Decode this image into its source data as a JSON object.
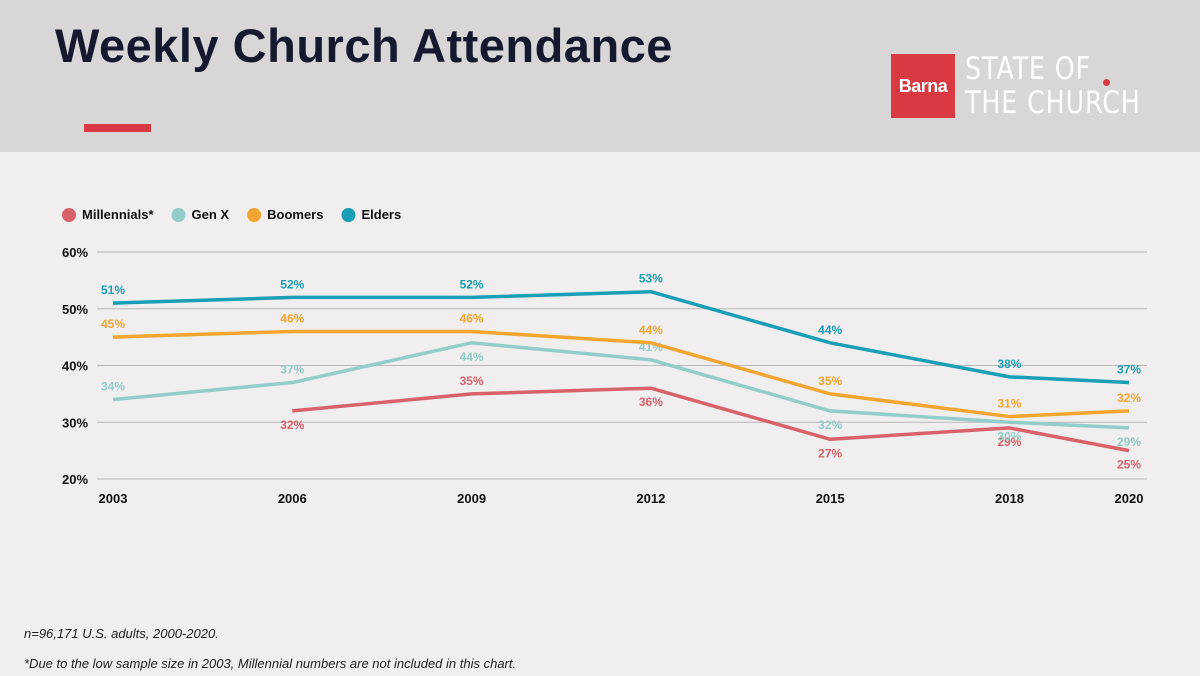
{
  "header": {
    "title": "Weekly Church Attendance",
    "logo_brand": "Barna",
    "logo_line1": "STATE OF",
    "logo_line2": "THE CHURCH"
  },
  "footnotes": {
    "sample_prefix": "n",
    "sample_rest": "=96,171 U.S. adults, 2000-2020.",
    "note": "*Due to the low sample size in 2003, Millennial numbers are not included in this chart."
  },
  "chart_data": {
    "type": "line",
    "title": "Weekly Church Attendance",
    "xlabel": "",
    "ylabel": "",
    "categories": [
      "2003",
      "2006",
      "2009",
      "2012",
      "2015",
      "2018",
      "2020"
    ],
    "x": [
      2003,
      2006,
      2009,
      2012,
      2015,
      2018,
      2020
    ],
    "ylim": [
      20,
      60
    ],
    "yticks": [
      20,
      30,
      40,
      50,
      60
    ],
    "ytick_labels": [
      "20%",
      "30%",
      "40%",
      "50%",
      "60%"
    ],
    "grid": true,
    "legend_position": "top-left",
    "series": [
      {
        "name": "Millennials*",
        "color": "#d9626a",
        "values": [
          null,
          32,
          35,
          36,
          27,
          29,
          25
        ],
        "labels": [
          "",
          "32%",
          "35%",
          "36%",
          "27%",
          "29%",
          "25%"
        ],
        "label_side": [
          "",
          "below",
          "above",
          "below",
          "below",
          "below",
          "below"
        ]
      },
      {
        "name": "Gen X",
        "color": "#92cdc9",
        "values": [
          34,
          37,
          44,
          41,
          32,
          30,
          29
        ],
        "labels": [
          "34%",
          "37%",
          "44%",
          "41%",
          "32%",
          "30%",
          "29%"
        ],
        "label_side": [
          "above",
          "above",
          "below",
          "above",
          "below",
          "below",
          "below"
        ]
      },
      {
        "name": "Boomers",
        "color": "#f2a531",
        "values": [
          45,
          46,
          46,
          44,
          35,
          31,
          32
        ],
        "labels": [
          "45%",
          "46%",
          "46%",
          "44%",
          "35%",
          "31%",
          "32%"
        ],
        "label_side": [
          "above",
          "above",
          "above",
          "above",
          "above",
          "above",
          "above"
        ]
      },
      {
        "name": "Elders",
        "color": "#1a9eb5",
        "values": [
          51,
          52,
          52,
          53,
          44,
          38,
          37
        ],
        "labels": [
          "51%",
          "52%",
          "52%",
          "53%",
          "44%",
          "38%",
          "37%"
        ],
        "label_side": [
          "above",
          "above",
          "above",
          "above",
          "above",
          "above",
          "above"
        ]
      }
    ]
  }
}
